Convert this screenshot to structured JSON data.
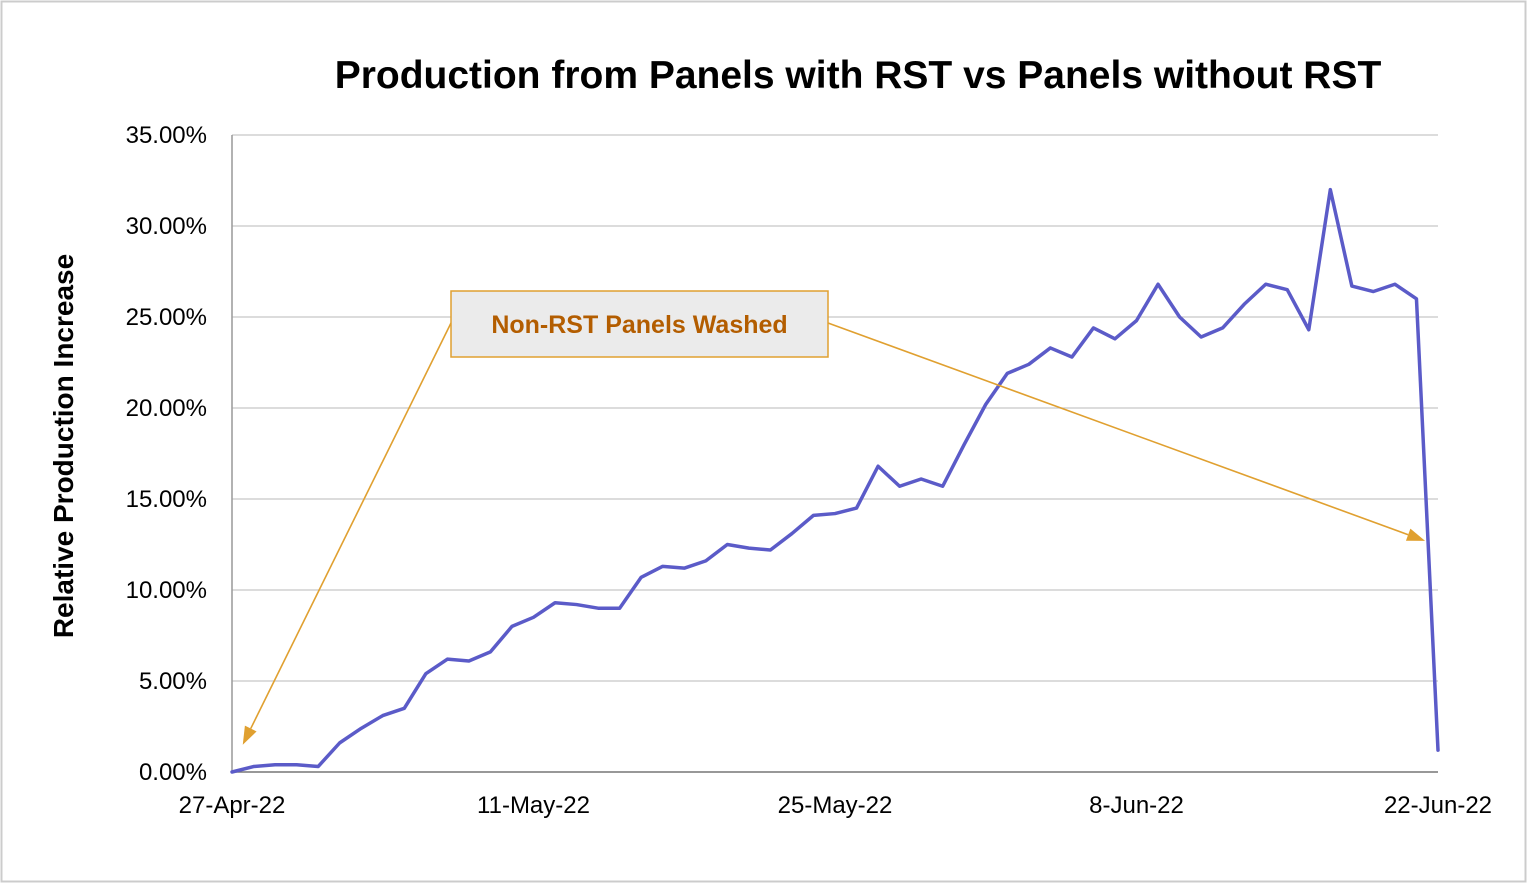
{
  "chart_data": {
    "type": "line",
    "title": "Production from Panels with RST vs Panels without RST",
    "xlabel": "",
    "ylabel": "Relative Production Increase",
    "x_tick_labels": [
      "27-Apr-22",
      "11-May-22",
      "25-May-22",
      "8-Jun-22",
      "22-Jun-22"
    ],
    "x_tick_indices": [
      0,
      14,
      28,
      42,
      56
    ],
    "y_tick_labels": [
      "0.00%",
      "5.00%",
      "10.00%",
      "15.00%",
      "20.00%",
      "25.00%",
      "30.00%",
      "35.00%"
    ],
    "y_tick_values": [
      0,
      5,
      10,
      15,
      20,
      25,
      30,
      35
    ],
    "ylim": [
      0,
      35
    ],
    "grid": true,
    "series": [
      {
        "name": "Relative Production Increase",
        "color": "#5b5bc8",
        "values": [
          0.0,
          0.3,
          0.4,
          0.4,
          0.3,
          1.6,
          2.4,
          3.1,
          3.5,
          5.4,
          6.2,
          6.1,
          6.6,
          8.0,
          8.5,
          9.3,
          9.2,
          9.0,
          9.0,
          10.7,
          11.3,
          11.2,
          11.6,
          12.5,
          12.3,
          12.2,
          13.1,
          14.1,
          14.2,
          14.5,
          16.8,
          15.7,
          16.1,
          15.7,
          18.0,
          20.2,
          21.9,
          22.4,
          23.3,
          22.8,
          24.4,
          23.8,
          24.8,
          26.8,
          25.0,
          23.9,
          24.4,
          25.7,
          26.8,
          26.5,
          24.3,
          32.0,
          26.7,
          26.4,
          26.8,
          26.0,
          1.2
        ]
      }
    ],
    "annotations": [
      {
        "text": "Non-RST Panels Washed",
        "text_color": "#b35d00",
        "box_fill": "#ebebeb",
        "box_border": "#e0a030",
        "arrow_color": "#e0a030",
        "arrow_targets": [
          {
            "x_index": 0.5,
            "y_value": 1.5
          },
          {
            "x_index": 55.4,
            "y_value": 12.7
          }
        ]
      }
    ]
  },
  "colors": {
    "gridline": "#c8c8c8",
    "axis": "#999999",
    "background": "#ffffff",
    "outer_border": "#cccccc"
  }
}
